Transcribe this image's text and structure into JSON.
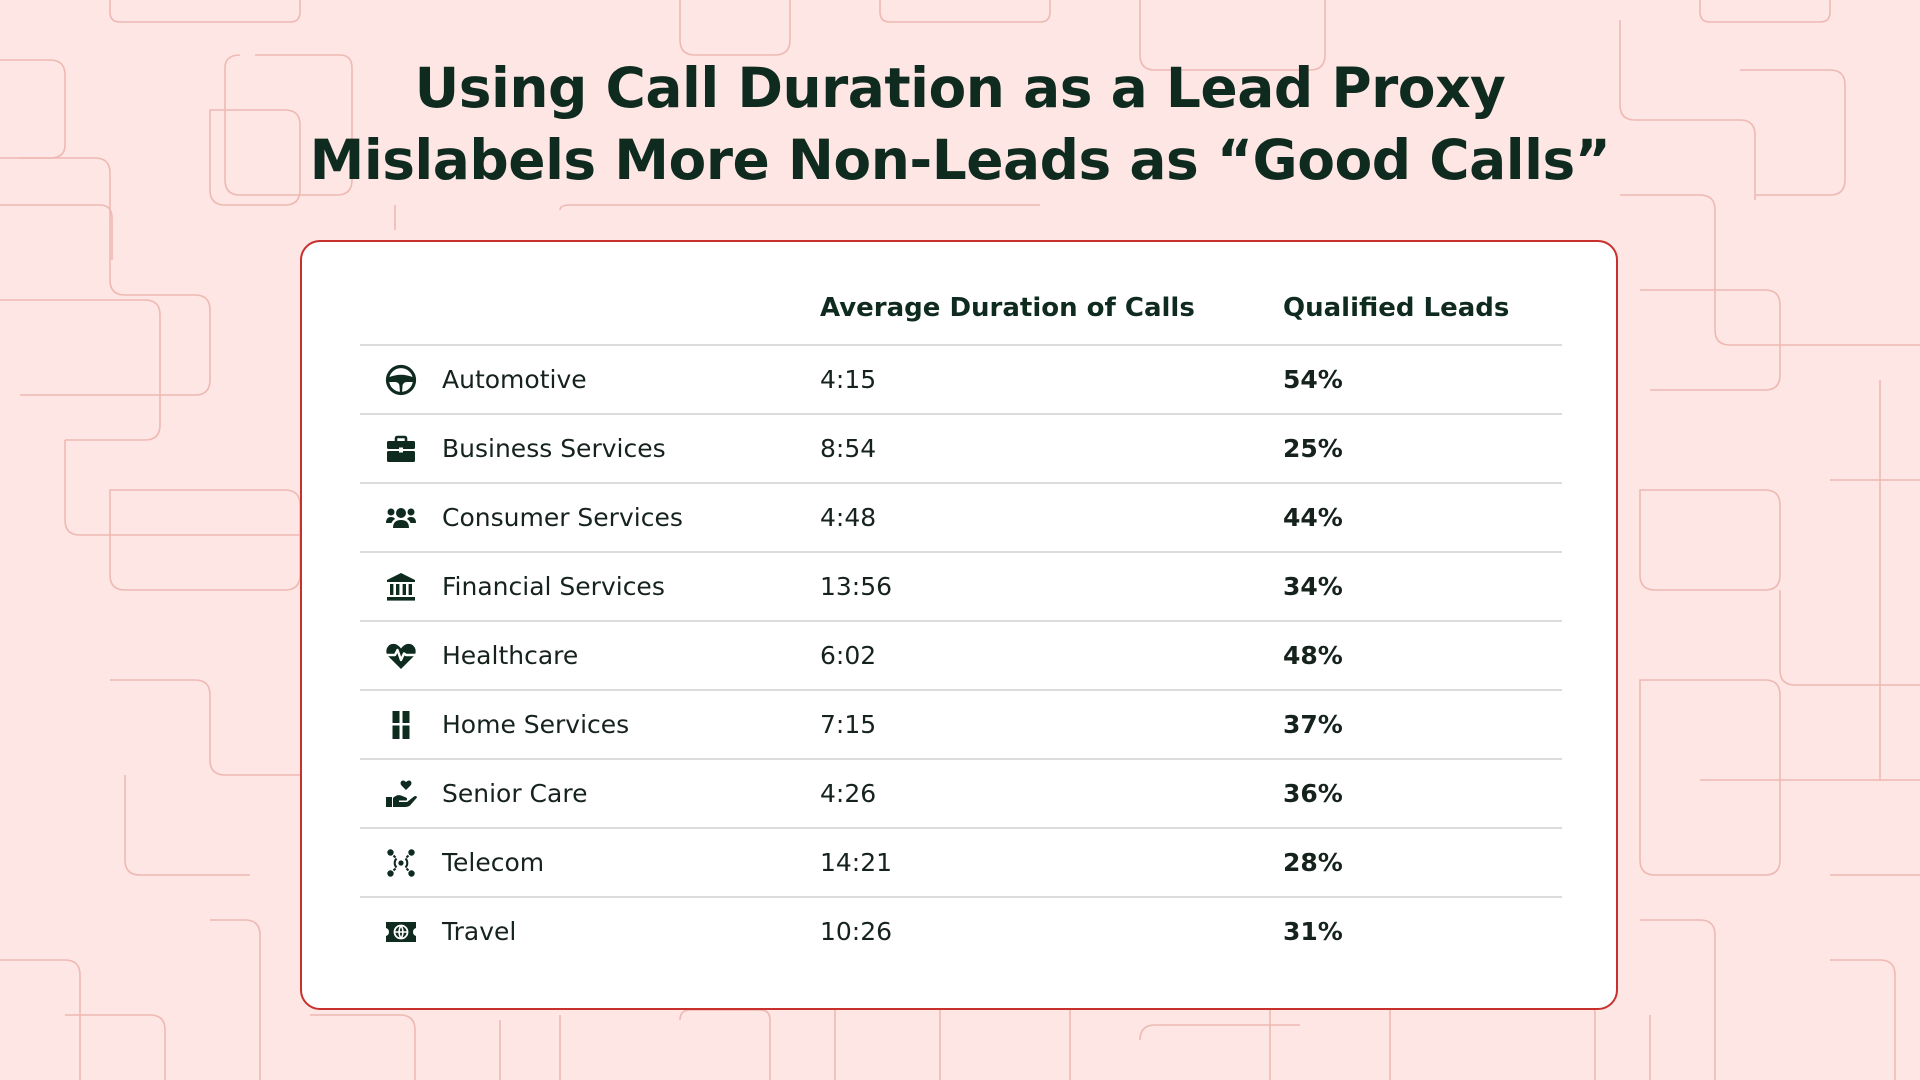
{
  "title_line1": "Using Call Duration as a Lead Proxy",
  "title_line2": "Mislabels More Non-Leads as “Good Calls”",
  "colors": {
    "background": "#fde6e3",
    "pattern_line": "#efb9b3",
    "card_border": "#c8302d",
    "title": "#0f2b1f",
    "percent": "#c62a27"
  },
  "chart_data": {
    "type": "table",
    "columns": [
      "",
      "Average Duration of Calls",
      "Qualified Leads"
    ],
    "rows": [
      {
        "category": "Automotive",
        "icon": "steering-wheel-icon",
        "duration": "4:15",
        "qualified": "54%"
      },
      {
        "category": "Business Services",
        "icon": "briefcase-icon",
        "duration": "8:54",
        "qualified": "25%"
      },
      {
        "category": "Consumer Services",
        "icon": "people-group-icon",
        "duration": "4:48",
        "qualified": "44%"
      },
      {
        "category": "Financial Services",
        "icon": "bank-icon",
        "duration": "13:56",
        "qualified": "34%"
      },
      {
        "category": "Healthcare",
        "icon": "heart-pulse-icon",
        "duration": "6:02",
        "qualified": "48%"
      },
      {
        "category": "Home Services",
        "icon": "door-icon",
        "duration": "7:15",
        "qualified": "37%"
      },
      {
        "category": "Senior Care",
        "icon": "hand-heart-icon",
        "duration": "4:26",
        "qualified": "36%"
      },
      {
        "category": "Telecom",
        "icon": "signal-network-icon",
        "duration": "14:21",
        "qualified": "28%"
      },
      {
        "category": "Travel",
        "icon": "ticket-globe-icon",
        "duration": "10:26",
        "qualified": "31%"
      }
    ]
  }
}
